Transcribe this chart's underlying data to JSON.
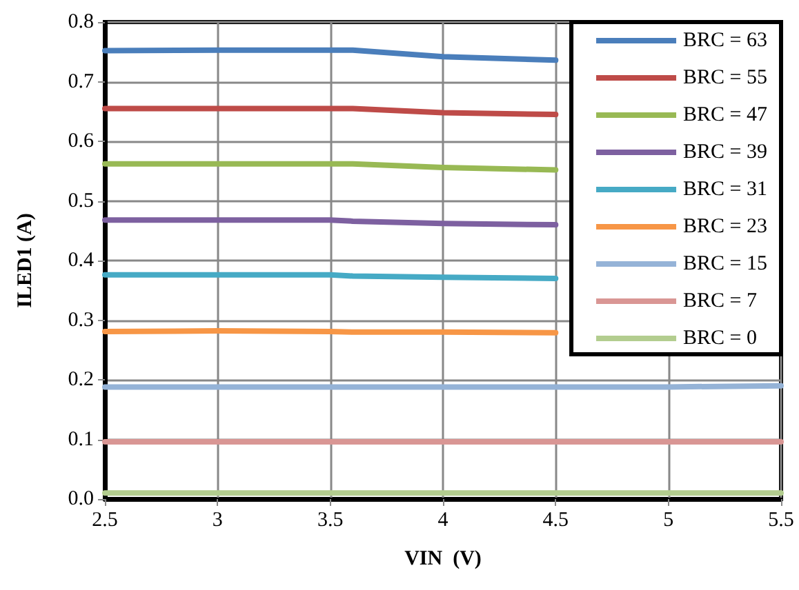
{
  "chart_data": {
    "type": "line",
    "xlabel": "VIN  (V)",
    "ylabel": "ILED1 (A)",
    "x": [
      2.5,
      3,
      3.5,
      3.6,
      4,
      4.5,
      5,
      5.5
    ],
    "xlim": [
      2.5,
      5.5
    ],
    "xticks": [
      2.5,
      3,
      3.5,
      4,
      4.5,
      5,
      5.5
    ],
    "ylim": [
      0,
      0.8
    ],
    "yticks": [
      {
        "value": 0,
        "label": "0.0"
      },
      0.1,
      0.2,
      0.3,
      0.4,
      0.5,
      0.6,
      0.7,
      0.8
    ],
    "grid": true,
    "legend": "top right",
    "marker": "none",
    "line_style": "solid",
    "series": [
      {
        "name": "BRC = 63",
        "color": "#4a7ebb",
        "values": [
          0.752,
          0.753,
          0.753,
          0.753,
          0.742,
          0.736,
          null,
          null
        ]
      },
      {
        "name": "BRC = 55",
        "color": "#be4b48",
        "values": [
          0.655,
          0.655,
          0.655,
          0.655,
          0.648,
          0.645,
          null,
          null
        ]
      },
      {
        "name": "BRC = 47",
        "color": "#98b954",
        "values": [
          0.562,
          0.562,
          0.562,
          0.562,
          0.556,
          0.552,
          null,
          null
        ]
      },
      {
        "name": "BRC = 39",
        "color": "#7d60a0",
        "values": [
          0.468,
          0.468,
          0.468,
          0.466,
          0.462,
          0.46,
          null,
          null
        ]
      },
      {
        "name": "BRC = 31",
        "color": "#46aac5",
        "values": [
          0.376,
          0.376,
          0.376,
          0.374,
          0.372,
          0.37,
          null,
          null
        ]
      },
      {
        "name": "BRC = 23",
        "color": "#f79646",
        "values": [
          0.281,
          0.282,
          0.281,
          0.28,
          0.28,
          0.279,
          null,
          null
        ]
      },
      {
        "name": "BRC = 15",
        "color": "#95b3d7",
        "values": [
          0.188,
          0.188,
          0.188,
          0.188,
          0.188,
          0.188,
          0.188,
          0.19
        ]
      },
      {
        "name": "BRC = 7",
        "color": "#d99694",
        "values": [
          0.096,
          0.096,
          0.096,
          0.096,
          0.096,
          0.096,
          0.096,
          0.096
        ]
      },
      {
        "name": "BRC = 0",
        "color": "#b3cd8f",
        "values": [
          0.01,
          0.01,
          0.01,
          0.01,
          0.01,
          0.01,
          0.01,
          0.01
        ]
      }
    ]
  }
}
